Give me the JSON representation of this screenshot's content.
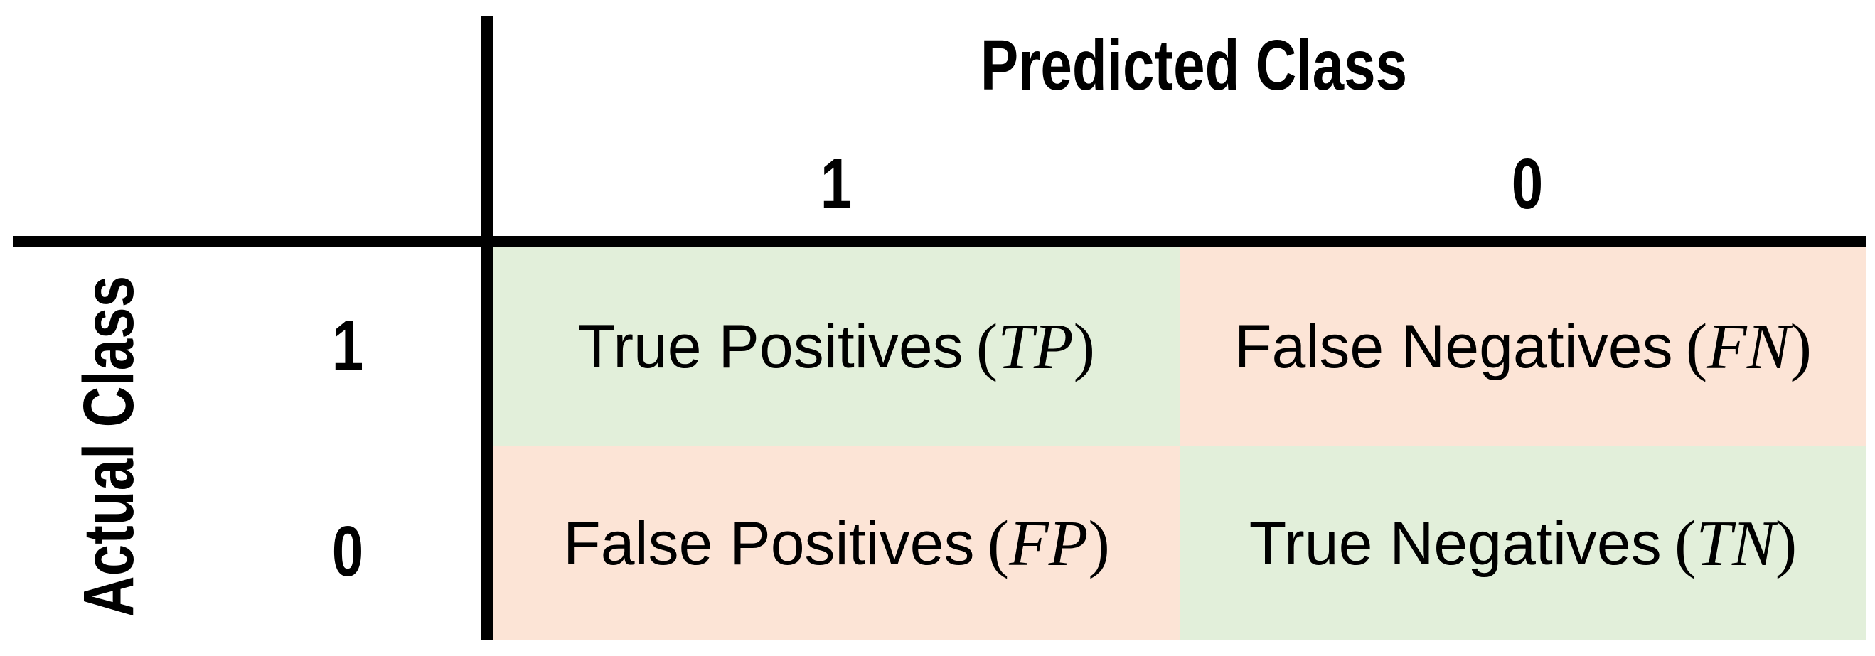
{
  "diagram": {
    "type": "confusion-matrix",
    "predicted_axis": {
      "title": "Predicted Class",
      "classes": [
        "1",
        "0"
      ]
    },
    "actual_axis": {
      "title": "Actual Class",
      "classes": [
        "1",
        "0"
      ]
    },
    "cells": {
      "tp": {
        "label": "True Positives",
        "abbr": "TP",
        "outcome": "correct"
      },
      "fn": {
        "label": "False Negatives",
        "abbr": "FN",
        "outcome": "incorrect"
      },
      "fp": {
        "label": "False Positives",
        "abbr": "FP",
        "outcome": "incorrect"
      },
      "tn": {
        "label": "True Negatives",
        "abbr": "TN",
        "outcome": "correct"
      }
    },
    "punct": {
      "open_paren": "(",
      "close_paren": ")"
    },
    "colors": {
      "correct_cell_bg": "#e2efda",
      "incorrect_cell_bg": "#fce4d6",
      "grid_line": "#000000",
      "text": "#000000",
      "background": "#ffffff"
    }
  }
}
